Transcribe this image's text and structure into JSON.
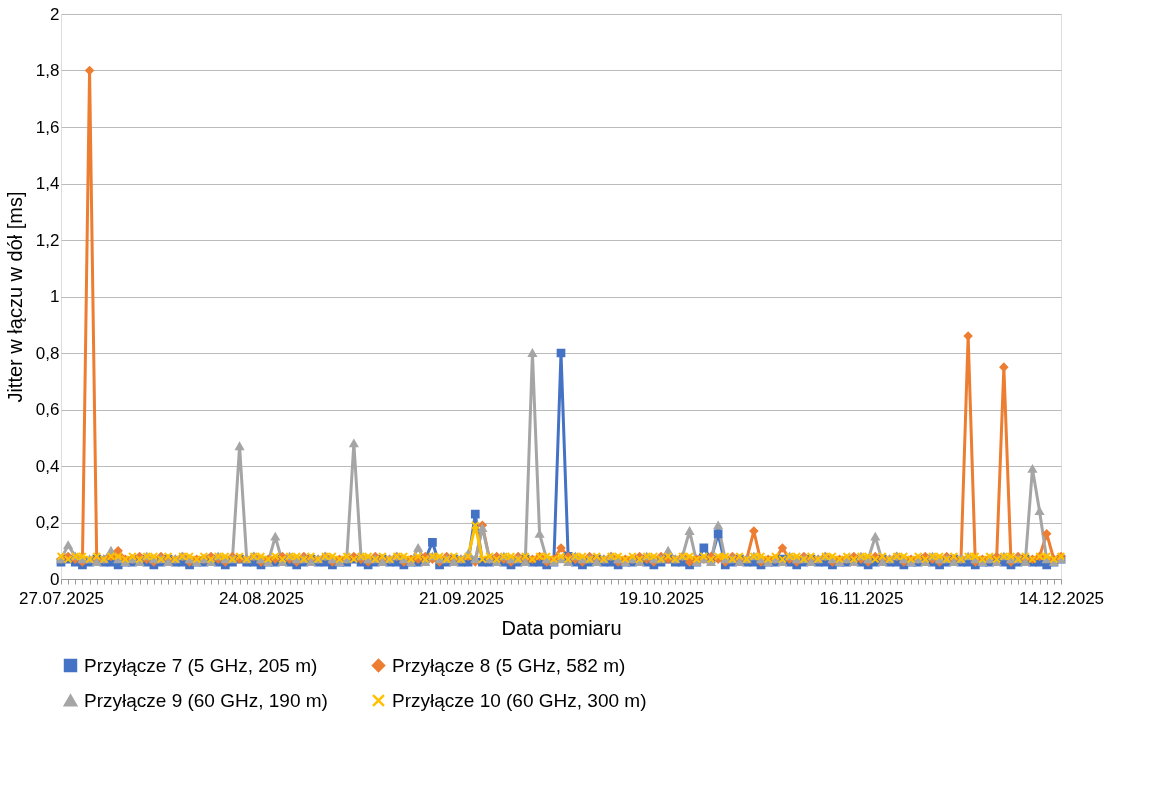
{
  "chart_data": {
    "type": "line",
    "xlabel": "Data pomiaru",
    "ylabel": "Jitter w łączu w dół [ms]",
    "categories": [
      "27.07.2025",
      null,
      null,
      null,
      null,
      null,
      null,
      null,
      null,
      null,
      null,
      null,
      null,
      null,
      null,
      null,
      null,
      null,
      null,
      null,
      null,
      null,
      null,
      null,
      null,
      null,
      null,
      null,
      "24.08.2025",
      null,
      null,
      null,
      null,
      null,
      null,
      null,
      null,
      null,
      null,
      null,
      null,
      null,
      null,
      null,
      null,
      null,
      null,
      null,
      null,
      null,
      null,
      null,
      null,
      null,
      null,
      null,
      "21.09.2025",
      null,
      null,
      null,
      null,
      null,
      null,
      null,
      null,
      null,
      null,
      null,
      null,
      null,
      null,
      null,
      null,
      null,
      null,
      null,
      null,
      null,
      null,
      null,
      null,
      null,
      null,
      null,
      "19.10.2025",
      null,
      null,
      null,
      null,
      null,
      null,
      null,
      null,
      null,
      null,
      null,
      null,
      null,
      null,
      null,
      null,
      null,
      null,
      null,
      null,
      null,
      null,
      null,
      null,
      null,
      null,
      null,
      "16.11.2025",
      null,
      null,
      null,
      null,
      null,
      null,
      null,
      null,
      null,
      null,
      null,
      null,
      null,
      null,
      null,
      null,
      null,
      null,
      null,
      null,
      null,
      null,
      null,
      null,
      null,
      null,
      null,
      "14.12.2025"
    ],
    "ylim": [
      0,
      2
    ],
    "yticks": [
      0,
      {
        "value": 0.2,
        "label": "0,2"
      },
      {
        "value": 0.4,
        "label": "0,4"
      },
      {
        "value": 0.6,
        "label": "0,6"
      },
      {
        "value": 0.8,
        "label": "0,8"
      },
      1,
      {
        "value": 1.2,
        "label": "1,2"
      },
      {
        "value": 1.4,
        "label": "1,4"
      },
      {
        "value": 1.6,
        "label": "1,6"
      },
      {
        "value": 1.8,
        "label": "1,8"
      },
      2
    ],
    "grid": "y",
    "legend": "bottom",
    "line_style": "solid",
    "series": [
      {
        "name": "Przyłącze 7 (5 GHz, 205 m)",
        "color": "#4472c4",
        "marker": "square",
        "values": [
          0.06,
          0.07,
          0.06,
          0.05,
          0.06,
          0.07,
          0.06,
          0.06,
          0.05,
          0.06,
          0.06,
          0.07,
          0.06,
          0.05,
          0.06,
          0.07,
          0.06,
          0.06,
          0.05,
          0.06,
          0.06,
          0.07,
          0.06,
          0.05,
          0.06,
          0.07,
          0.06,
          0.06,
          0.05,
          0.06,
          0.06,
          0.07,
          0.06,
          0.05,
          0.06,
          0.07,
          0.06,
          0.06,
          0.05,
          0.06,
          0.06,
          0.07,
          0.06,
          0.05,
          0.06,
          0.07,
          0.06,
          0.06,
          0.05,
          0.06,
          0.06,
          0.07,
          0.13,
          0.05,
          0.06,
          0.07,
          0.06,
          0.06,
          0.23,
          0.06,
          0.06,
          0.07,
          0.06,
          0.05,
          0.06,
          0.07,
          0.06,
          0.06,
          0.05,
          0.06,
          0.8,
          0.08,
          0.06,
          0.05,
          0.06,
          0.07,
          0.06,
          0.06,
          0.05,
          0.06,
          0.06,
          0.07,
          0.06,
          0.05,
          0.06,
          0.07,
          0.06,
          0.06,
          0.05,
          0.06,
          0.11,
          0.07,
          0.16,
          0.05,
          0.06,
          0.07,
          0.06,
          0.06,
          0.05,
          0.06,
          0.06,
          0.07,
          0.06,
          0.05,
          0.06,
          0.07,
          0.06,
          0.06,
          0.05,
          0.06,
          0.06,
          0.07,
          0.06,
          0.05,
          0.06,
          0.07,
          0.06,
          0.06,
          0.05,
          0.06,
          0.06,
          0.07,
          0.06,
          0.05,
          0.06,
          0.07,
          0.06,
          0.06,
          0.05,
          0.06,
          0.06,
          0.07,
          0.06,
          0.05,
          0.06,
          0.07,
          0.06,
          0.06,
          0.05,
          0.06,
          0.07
        ]
      },
      {
        "name": "Przyłącze 8 (5 GHz, 582 m)",
        "color": "#ed7d31",
        "marker": "diamond",
        "values": [
          0.07,
          0.08,
          0.07,
          0.06,
          1.8,
          0.07,
          0.07,
          0.08,
          0.1,
          0.07,
          0.07,
          0.08,
          0.07,
          0.06,
          0.08,
          0.07,
          0.07,
          0.08,
          0.06,
          0.07,
          0.07,
          0.08,
          0.07,
          0.06,
          0.08,
          0.07,
          0.07,
          0.08,
          0.06,
          0.07,
          0.07,
          0.08,
          0.07,
          0.06,
          0.08,
          0.07,
          0.07,
          0.08,
          0.06,
          0.07,
          0.07,
          0.08,
          0.07,
          0.06,
          0.08,
          0.07,
          0.07,
          0.08,
          0.06,
          0.07,
          0.07,
          0.08,
          0.07,
          0.06,
          0.08,
          0.07,
          0.07,
          0.08,
          0.06,
          0.19,
          0.07,
          0.08,
          0.07,
          0.06,
          0.08,
          0.07,
          0.07,
          0.08,
          0.06,
          0.07,
          0.11,
          0.08,
          0.07,
          0.06,
          0.08,
          0.07,
          0.07,
          0.08,
          0.06,
          0.07,
          0.07,
          0.08,
          0.07,
          0.06,
          0.08,
          0.07,
          0.07,
          0.08,
          0.06,
          0.07,
          0.07,
          0.08,
          0.07,
          0.06,
          0.08,
          0.07,
          0.07,
          0.17,
          0.06,
          0.07,
          0.07,
          0.11,
          0.07,
          0.06,
          0.08,
          0.07,
          0.07,
          0.08,
          0.06,
          0.07,
          0.07,
          0.08,
          0.07,
          0.06,
          0.08,
          0.07,
          0.07,
          0.08,
          0.06,
          0.07,
          0.07,
          0.08,
          0.07,
          0.06,
          0.08,
          0.07,
          0.07,
          0.86,
          0.06,
          0.07,
          0.07,
          0.08,
          0.75,
          0.06,
          0.08,
          0.07,
          0.07,
          0.08,
          0.16,
          0.07,
          0.08
        ]
      },
      {
        "name": "Przyłącze 9 (60 GHz, 190 m)",
        "color": "#a5a5a5",
        "marker": "triangle",
        "values": [
          0.07,
          0.12,
          0.08,
          0.07,
          0.07,
          0.06,
          0.07,
          0.1,
          0.07,
          0.06,
          0.07,
          0.06,
          0.08,
          0.07,
          0.07,
          0.06,
          0.07,
          0.08,
          0.07,
          0.06,
          0.07,
          0.06,
          0.08,
          0.07,
          0.07,
          0.47,
          0.07,
          0.08,
          0.07,
          0.06,
          0.15,
          0.06,
          0.08,
          0.07,
          0.07,
          0.06,
          0.07,
          0.08,
          0.07,
          0.06,
          0.07,
          0.48,
          0.08,
          0.07,
          0.07,
          0.06,
          0.07,
          0.08,
          0.07,
          0.06,
          0.11,
          0.06,
          0.08,
          0.07,
          0.07,
          0.06,
          0.07,
          0.09,
          0.07,
          0.18,
          0.07,
          0.06,
          0.08,
          0.07,
          0.07,
          0.06,
          0.8,
          0.16,
          0.07,
          0.06,
          0.07,
          0.06,
          0.08,
          0.07,
          0.07,
          0.06,
          0.07,
          0.08,
          0.07,
          0.06,
          0.07,
          0.06,
          0.08,
          0.07,
          0.07,
          0.1,
          0.07,
          0.08,
          0.17,
          0.06,
          0.07,
          0.06,
          0.19,
          0.07,
          0.07,
          0.06,
          0.07,
          0.08,
          0.07,
          0.06,
          0.07,
          0.06,
          0.08,
          0.07,
          0.07,
          0.06,
          0.07,
          0.08,
          0.07,
          0.06,
          0.07,
          0.06,
          0.08,
          0.07,
          0.15,
          0.06,
          0.07,
          0.08,
          0.07,
          0.06,
          0.07,
          0.06,
          0.08,
          0.07,
          0.07,
          0.06,
          0.07,
          0.08,
          0.07,
          0.06,
          0.07,
          0.06,
          0.08,
          0.07,
          0.07,
          0.06,
          0.39,
          0.24,
          0.07,
          0.06,
          0.07
        ]
      },
      {
        "name": "Przyłącze 10 (60 GHz, 300 m)",
        "color": "#ffc000",
        "marker": "cross",
        "values": [
          0.08,
          0.07,
          0.08,
          0.08,
          0.07,
          0.08,
          0.07,
          0.08,
          0.08,
          0.07,
          0.08,
          0.07,
          0.08,
          0.08,
          0.07,
          0.08,
          0.07,
          0.08,
          0.08,
          0.07,
          0.08,
          0.07,
          0.08,
          0.08,
          0.07,
          0.08,
          0.07,
          0.08,
          0.08,
          0.07,
          0.08,
          0.07,
          0.08,
          0.08,
          0.07,
          0.08,
          0.07,
          0.08,
          0.08,
          0.07,
          0.08,
          0.07,
          0.08,
          0.08,
          0.07,
          0.08,
          0.07,
          0.08,
          0.08,
          0.07,
          0.08,
          0.07,
          0.08,
          0.08,
          0.07,
          0.08,
          0.07,
          0.08,
          0.19,
          0.07,
          0.08,
          0.07,
          0.08,
          0.08,
          0.07,
          0.08,
          0.07,
          0.08,
          0.08,
          0.07,
          0.08,
          0.07,
          0.08,
          0.08,
          0.07,
          0.08,
          0.07,
          0.08,
          0.08,
          0.07,
          0.08,
          0.07,
          0.08,
          0.08,
          0.07,
          0.08,
          0.07,
          0.08,
          0.08,
          0.07,
          0.08,
          0.07,
          0.08,
          0.08,
          0.07,
          0.08,
          0.07,
          0.08,
          0.08,
          0.07,
          0.08,
          0.07,
          0.08,
          0.08,
          0.07,
          0.08,
          0.07,
          0.08,
          0.08,
          0.07,
          0.08,
          0.07,
          0.08,
          0.08,
          0.07,
          0.08,
          0.07,
          0.08,
          0.08,
          0.07,
          0.08,
          0.07,
          0.08,
          0.08,
          0.07,
          0.08,
          0.07,
          0.08,
          0.08,
          0.07,
          0.08,
          0.07,
          0.08,
          0.08,
          0.07,
          0.08,
          0.07,
          0.08,
          0.08,
          0.07,
          0.08
        ]
      }
    ]
  }
}
